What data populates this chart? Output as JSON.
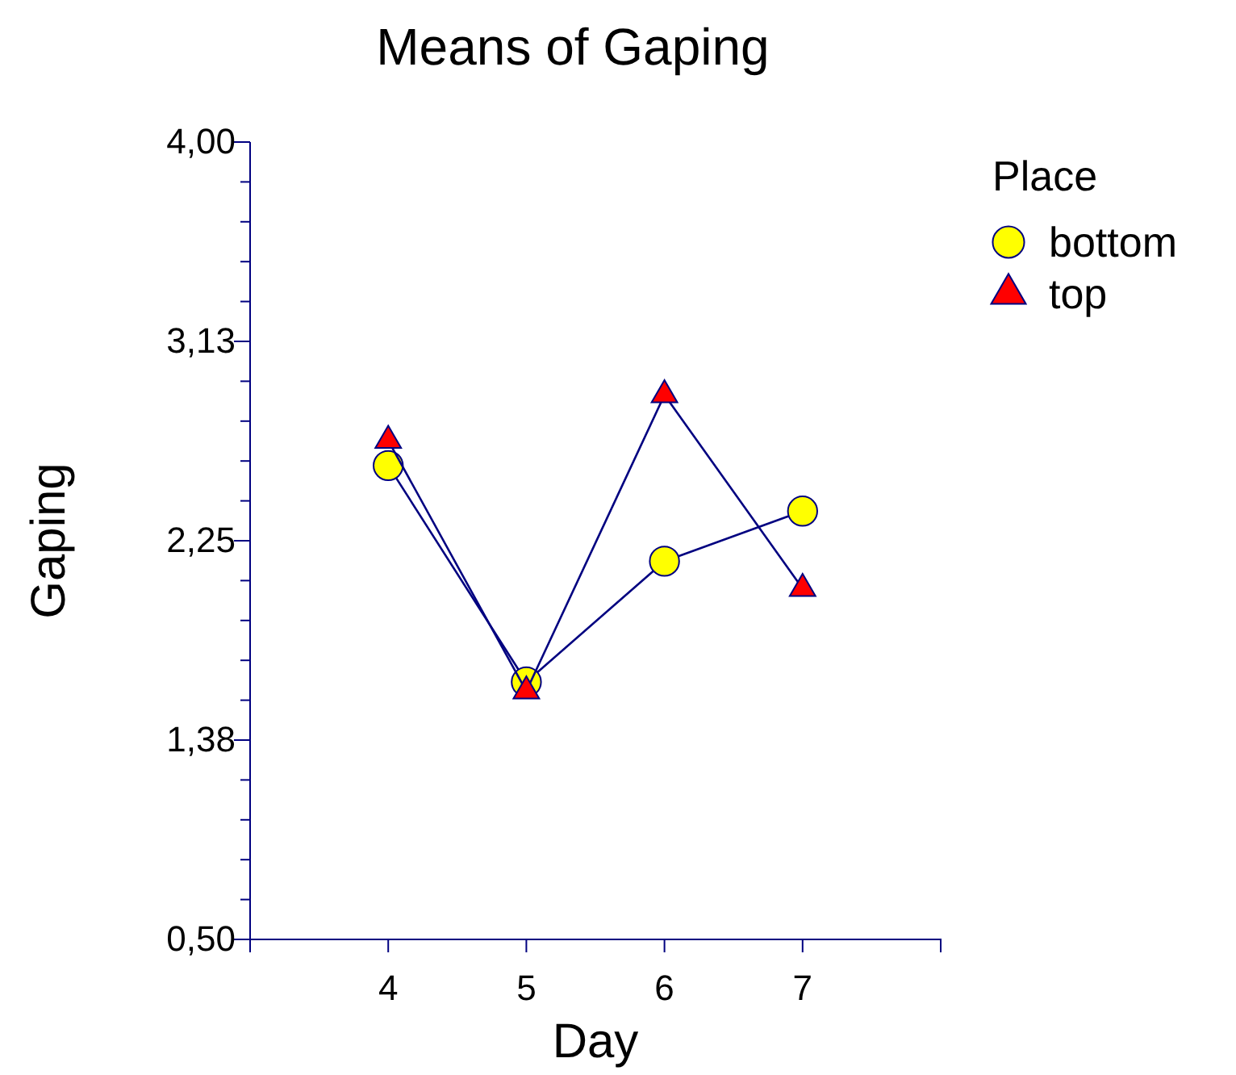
{
  "chart_data": {
    "type": "line",
    "title": "Means of Gaping",
    "xlabel": "Day",
    "ylabel": "Gaping",
    "legend_title": "Place",
    "legend": "top right",
    "x": [
      4,
      5,
      6,
      7
    ],
    "series": [
      {
        "name": "bottom",
        "color": "#ffff00",
        "marker": "circle",
        "values": [
          2.58,
          1.63,
          2.16,
          2.38
        ]
      },
      {
        "name": "top",
        "color": "#ff0000",
        "marker": "triangle",
        "values": [
          2.69,
          1.59,
          2.89,
          2.04
        ]
      }
    ],
    "xlim": [
      3,
      8
    ],
    "xticks": [
      4,
      5,
      6,
      7
    ],
    "ylim": [
      0.5,
      4.0
    ],
    "yticks": [
      {
        "value": 0.5,
        "label": "0,50"
      },
      {
        "value": 0.675,
        "label": null
      },
      {
        "value": 0.85,
        "label": null
      },
      {
        "value": 1.025,
        "label": null
      },
      {
        "value": 1.2,
        "label": null
      },
      {
        "value": 1.375,
        "label": "1,38"
      },
      {
        "value": 1.55,
        "label": null
      },
      {
        "value": 1.725,
        "label": null
      },
      {
        "value": 1.9,
        "label": null
      },
      {
        "value": 2.075,
        "label": null
      },
      {
        "value": 2.25,
        "label": "2,25"
      },
      {
        "value": 2.425,
        "label": null
      },
      {
        "value": 2.6,
        "label": null
      },
      {
        "value": 2.775,
        "label": null
      },
      {
        "value": 2.95,
        "label": null
      },
      {
        "value": 3.125,
        "label": "3,13"
      },
      {
        "value": 3.3,
        "label": null
      },
      {
        "value": 3.475,
        "label": null
      },
      {
        "value": 3.65,
        "label": null
      },
      {
        "value": 3.825,
        "label": null
      },
      {
        "value": 4.0,
        "label": "4,00"
      }
    ]
  }
}
